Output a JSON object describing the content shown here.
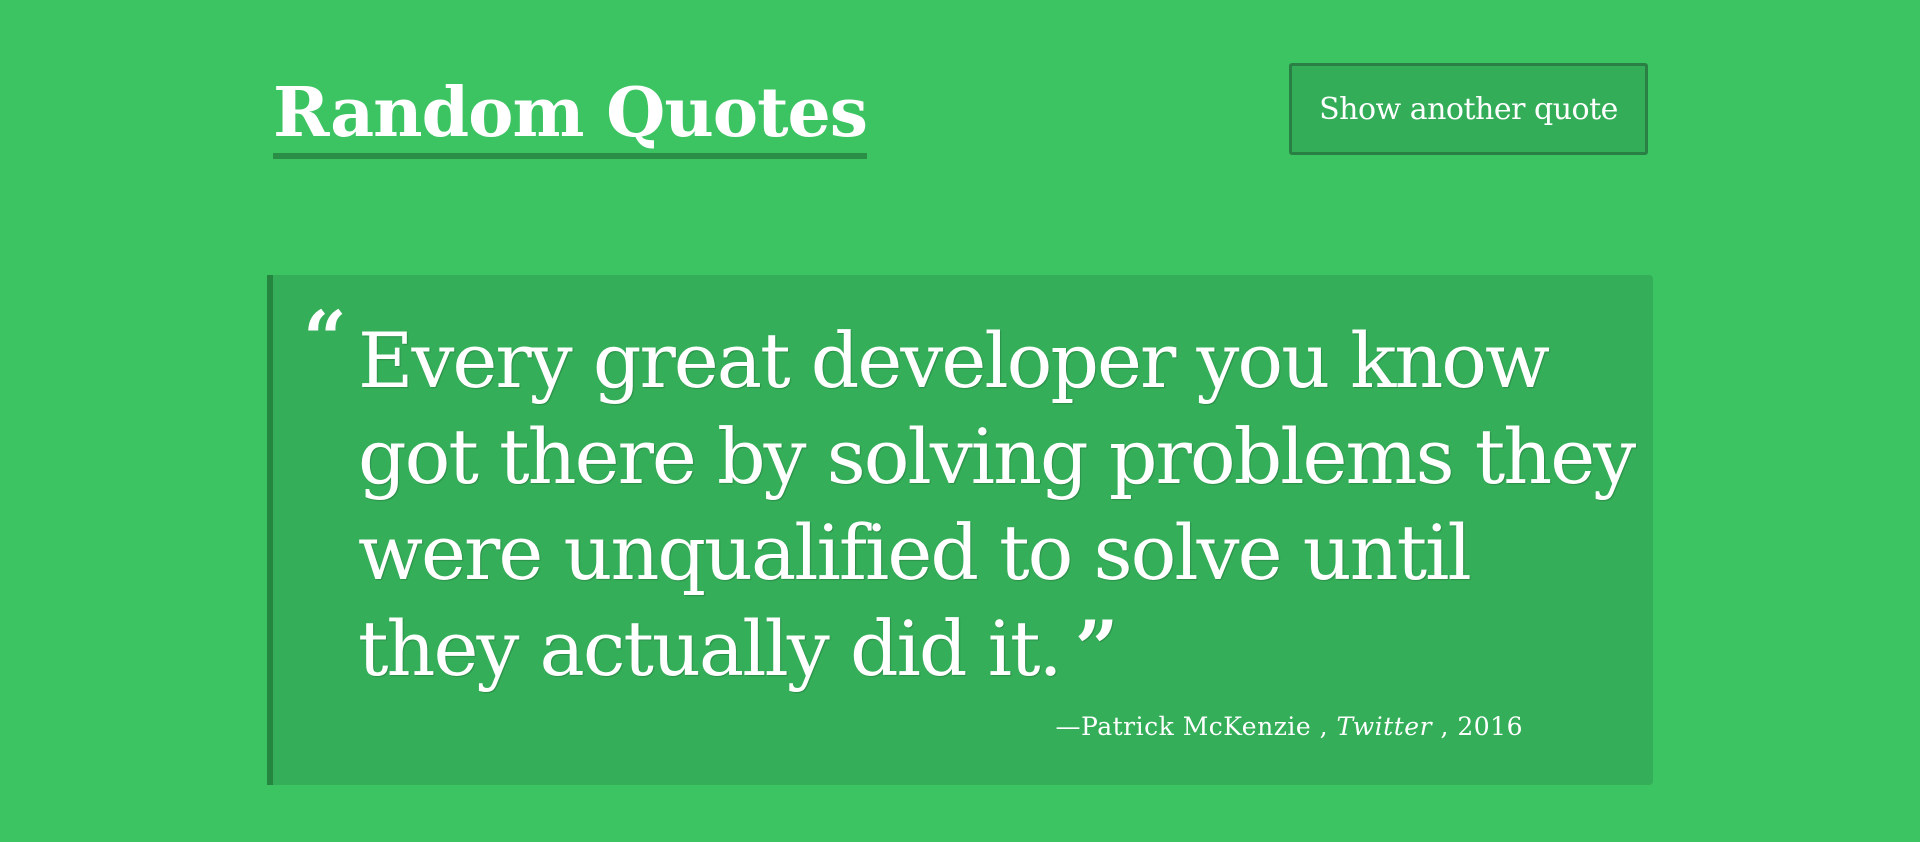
{
  "header": {
    "title": "Random Quotes",
    "button_label": "Show another quote"
  },
  "quote": {
    "open_mark": "“",
    "text": "Every great developer you know got there by solving problems they were unqualified to solve until they actually did it.",
    "close_mark": "”",
    "dash": "—",
    "author": "Patrick McKenzie",
    "separator_1": " , ",
    "source": "Twitter",
    "separator_2": " , ",
    "year": "2016"
  },
  "colors": {
    "background": "#3cc362",
    "card": "#34ae58",
    "accent_border": "#25873f",
    "text": "#ffffff"
  }
}
